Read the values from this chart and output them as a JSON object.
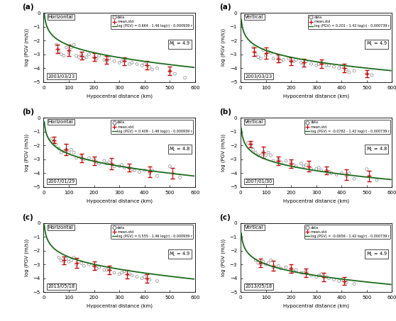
{
  "panels": [
    {
      "label": "(a)",
      "orientation": "Horizontal",
      "date": "2003/03/23",
      "ML": "4.9",
      "equation": "log (PGV) = 0.664 - 1.46 log(r) - 0.000939 r",
      "eq_a": 0.664,
      "eq_b": -1.46,
      "eq_c": -0.000939,
      "ylim": [
        -5,
        0
      ],
      "xlim": [
        0,
        600
      ],
      "data_x": [
        50,
        60,
        70,
        80,
        90,
        100,
        110,
        120,
        130,
        140,
        150,
        160,
        170,
        180,
        200,
        210,
        220,
        240,
        250,
        260,
        280,
        300,
        310,
        320,
        340,
        350,
        370,
        390,
        400,
        420,
        430,
        450,
        500,
        520,
        560
      ],
      "data_y": [
        -2.3,
        -2.8,
        -3.0,
        -3.1,
        -2.5,
        -2.9,
        -2.5,
        -2.3,
        -3.1,
        -3.2,
        -3.0,
        -3.3,
        -3.2,
        -3.0,
        -3.2,
        -3.3,
        -3.1,
        -3.4,
        -3.5,
        -3.3,
        -3.5,
        -3.6,
        -3.5,
        -3.4,
        -3.7,
        -3.6,
        -3.7,
        -3.8,
        -3.7,
        -3.9,
        -4.1,
        -4.0,
        -4.2,
        -4.4,
        -4.7
      ],
      "mean_x": [
        55,
        100,
        150,
        200,
        250,
        320,
        410,
        500
      ],
      "mean_y": [
        -2.6,
        -2.7,
        -3.1,
        -3.2,
        -3.4,
        -3.5,
        -3.8,
        -4.2
      ],
      "std_y": [
        0.3,
        0.4,
        0.3,
        0.3,
        0.3,
        0.3,
        0.3,
        0.3
      ]
    },
    {
      "label": "(a)",
      "orientation": "Vertical",
      "date": "2003/03/23",
      "ML": "4.9",
      "equation": "log (PGV) = 0.201 - 1.42 log(r) - 0.000739 r",
      "eq_a": 0.201,
      "eq_b": -1.42,
      "eq_c": -0.000739,
      "ylim": [
        -5,
        0
      ],
      "xlim": [
        0,
        600
      ],
      "data_x": [
        50,
        60,
        70,
        80,
        90,
        100,
        110,
        120,
        130,
        150,
        160,
        170,
        190,
        200,
        210,
        220,
        240,
        250,
        260,
        280,
        300,
        310,
        320,
        340,
        350,
        370,
        390,
        400,
        420,
        430,
        450,
        500,
        520
      ],
      "data_y": [
        -2.5,
        -3.0,
        -3.2,
        -3.3,
        -2.7,
        -3.1,
        -2.8,
        -2.9,
        -3.3,
        -3.2,
        -3.5,
        -3.4,
        -3.3,
        -3.5,
        -3.5,
        -3.4,
        -3.6,
        -3.7,
        -3.5,
        -3.7,
        -3.8,
        -3.7,
        -3.6,
        -3.8,
        -3.8,
        -3.9,
        -4.0,
        -3.9,
        -4.1,
        -4.3,
        -4.2,
        -4.4,
        -4.5
      ],
      "mean_x": [
        55,
        100,
        150,
        200,
        250,
        320,
        410,
        500
      ],
      "mean_y": [
        -2.8,
        -2.9,
        -3.3,
        -3.5,
        -3.6,
        -3.7,
        -4.0,
        -4.4
      ],
      "std_y": [
        0.3,
        0.4,
        0.3,
        0.3,
        0.3,
        0.3,
        0.3,
        0.25
      ]
    },
    {
      "label": "(b)",
      "orientation": "Horizontal",
      "date": "2007/01/29",
      "ML": "4.8",
      "equation": "log (PGV) = 0.409 - 1.46 log(r) - 0.000939 r",
      "eq_a": 0.409,
      "eq_b": -1.46,
      "eq_c": -0.000939,
      "ylim": [
        -5,
        0
      ],
      "xlim": [
        0,
        600
      ],
      "data_x": [
        30,
        40,
        50,
        60,
        70,
        80,
        90,
        100,
        110,
        120,
        130,
        150,
        160,
        180,
        200,
        210,
        220,
        240,
        250,
        260,
        280,
        300,
        310,
        320,
        340,
        350,
        360,
        380,
        400,
        420,
        430,
        450,
        500,
        540
      ],
      "data_y": [
        -1.5,
        -1.7,
        -1.9,
        -2.2,
        -2.5,
        -2.4,
        -2.3,
        -2.5,
        -2.3,
        -2.5,
        -2.9,
        -2.8,
        -3.0,
        -2.9,
        -3.0,
        -3.2,
        -3.3,
        -3.1,
        -3.3,
        -3.2,
        -3.5,
        -3.5,
        -3.4,
        -3.6,
        -3.6,
        -3.7,
        -3.8,
        -3.9,
        -3.8,
        -4.0,
        -3.8,
        -4.2,
        -3.5,
        -4.3
      ],
      "mean_x": [
        40,
        90,
        150,
        200,
        270,
        340,
        420,
        510
      ],
      "mean_y": [
        -1.6,
        -2.3,
        -2.9,
        -3.1,
        -3.3,
        -3.6,
        -3.9,
        -4.0
      ],
      "std_y": [
        0.25,
        0.4,
        0.3,
        0.3,
        0.4,
        0.3,
        0.4,
        0.4
      ]
    },
    {
      "label": "(b)",
      "orientation": "Vertical",
      "date": "2007/01/30",
      "ML": "4.8",
      "equation": "log (PGV) = -0.0782 - 1.42 log(r) - 0.000739 r",
      "eq_a": -0.0782,
      "eq_b": -1.42,
      "eq_c": -0.000739,
      "ylim": [
        -5,
        0
      ],
      "xlim": [
        0,
        600
      ],
      "data_x": [
        30,
        40,
        50,
        60,
        70,
        80,
        90,
        100,
        110,
        120,
        130,
        150,
        160,
        180,
        200,
        210,
        220,
        240,
        250,
        260,
        280,
        300,
        310,
        320,
        340,
        350,
        360,
        380,
        400,
        420,
        430,
        450,
        500,
        540
      ],
      "data_y": [
        -1.8,
        -2.0,
        -2.3,
        -2.5,
        -2.7,
        -2.7,
        -2.5,
        -2.7,
        -2.5,
        -2.7,
        -3.1,
        -3.0,
        -3.2,
        -3.1,
        -3.2,
        -3.4,
        -3.5,
        -3.3,
        -3.5,
        -3.4,
        -3.7,
        -3.7,
        -3.6,
        -3.8,
        -3.8,
        -3.9,
        -4.0,
        -4.1,
        -4.0,
        -4.2,
        -4.0,
        -4.4,
        -3.7,
        -4.5
      ],
      "mean_x": [
        40,
        90,
        150,
        200,
        270,
        340,
        420,
        510
      ],
      "mean_y": [
        -1.9,
        -2.5,
        -3.1,
        -3.3,
        -3.5,
        -3.8,
        -4.1,
        -4.2
      ],
      "std_y": [
        0.25,
        0.4,
        0.3,
        0.3,
        0.4,
        0.3,
        0.4,
        0.4
      ]
    },
    {
      "label": "(c)",
      "orientation": "Horizontal",
      "date": "2013/05/18",
      "ML": "4.9",
      "equation": "log (PGV) = 0.555 - 1.46 log(r) - 0.000939 r",
      "eq_a": 0.555,
      "eq_b": -1.46,
      "eq_c": -0.000939,
      "ylim": [
        -5,
        0
      ],
      "xlim": [
        0,
        600
      ],
      "data_x": [
        60,
        70,
        80,
        90,
        100,
        110,
        120,
        130,
        150,
        160,
        180,
        200,
        210,
        220,
        240,
        250,
        260,
        280,
        300,
        310,
        320,
        340,
        350,
        370,
        390,
        400,
        420,
        450
      ],
      "data_y": [
        -2.5,
        -2.7,
        -2.8,
        -2.6,
        -2.8,
        -2.7,
        -2.5,
        -3.0,
        -2.9,
        -3.1,
        -3.0,
        -3.1,
        -3.3,
        -3.2,
        -3.4,
        -3.4,
        -3.3,
        -3.6,
        -3.7,
        -3.6,
        -3.5,
        -3.7,
        -3.8,
        -3.9,
        -4.0,
        -3.9,
        -4.1,
        -4.2
      ],
      "mean_x": [
        80,
        130,
        200,
        260,
        330,
        410
      ],
      "mean_y": [
        -2.7,
        -2.9,
        -3.1,
        -3.4,
        -3.7,
        -4.0
      ],
      "std_y": [
        0.3,
        0.35,
        0.3,
        0.3,
        0.3,
        0.3
      ]
    },
    {
      "label": "(c)",
      "orientation": "Vertical",
      "date": "2013/05/18",
      "ML": "4.9",
      "equation": "log (PGV) = -0.0656 - 1.42 log(r) - 0.000739 r",
      "eq_a": -0.0656,
      "eq_b": -1.42,
      "eq_c": -0.000739,
      "ylim": [
        -5,
        0
      ],
      "xlim": [
        0,
        600
      ],
      "data_x": [
        60,
        70,
        80,
        90,
        100,
        110,
        120,
        130,
        150,
        160,
        180,
        200,
        210,
        220,
        240,
        250,
        260,
        280,
        300,
        310,
        320,
        340,
        350,
        370,
        390,
        400,
        420,
        450
      ],
      "data_y": [
        -2.7,
        -2.9,
        -3.0,
        -2.8,
        -3.0,
        -2.9,
        -2.7,
        -3.2,
        -3.1,
        -3.3,
        -3.2,
        -3.3,
        -3.5,
        -3.4,
        -3.6,
        -3.6,
        -3.5,
        -3.8,
        -3.9,
        -3.8,
        -3.7,
        -3.9,
        -4.0,
        -4.1,
        -4.2,
        -4.1,
        -4.3,
        -4.4
      ],
      "mean_x": [
        80,
        130,
        200,
        260,
        330,
        410
      ],
      "mean_y": [
        -2.9,
        -3.1,
        -3.3,
        -3.6,
        -3.9,
        -4.2
      ],
      "std_y": [
        0.3,
        0.35,
        0.3,
        0.3,
        0.3,
        0.3
      ]
    }
  ],
  "curve_color": "#1a6b1a",
  "scatter_color": "#888888",
  "mean_color": "#cc0000",
  "fig_bg": "#ffffff"
}
